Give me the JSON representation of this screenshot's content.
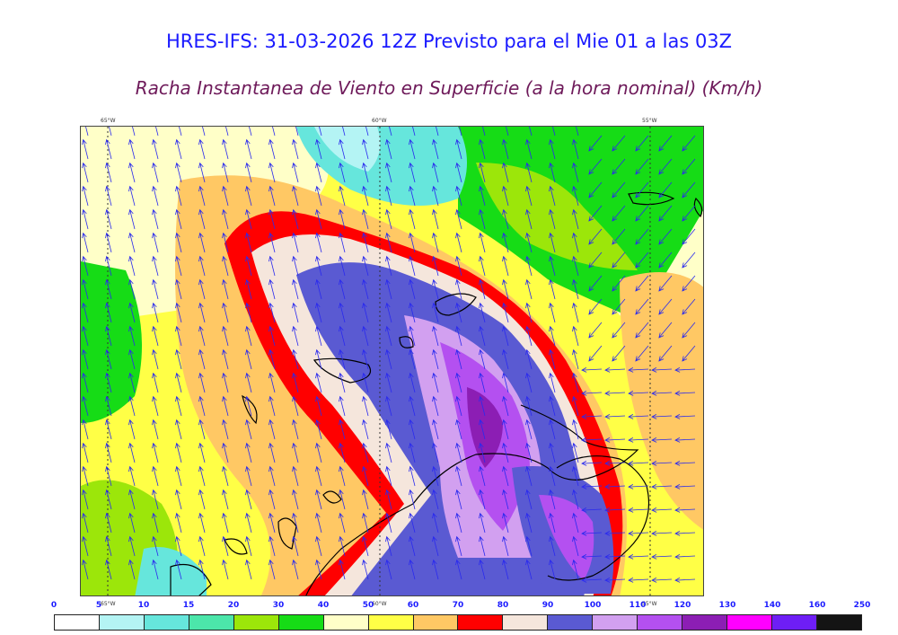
{
  "header": {
    "title": "HRES-IFS: 31-03-2026 12Z Previsto para el Mie 01 a las 03Z",
    "subtitle": "Racha Instantanea de Viento en Superficie (a la hora nominal) (Km/h)"
  },
  "map": {
    "longitude_labels_top": [
      "65°W",
      "60°W",
      "55°W"
    ],
    "longitude_labels_bottom": [
      "65°W",
      "60°W",
      "55°W"
    ]
  },
  "colorbar": {
    "ticks": [
      "0",
      "5",
      "10",
      "15",
      "20",
      "30",
      "40",
      "50",
      "60",
      "70",
      "80",
      "90",
      "100",
      "110",
      "120",
      "130",
      "140",
      "160",
      "250"
    ],
    "colors": [
      "#ffffff",
      "#b4f4f4",
      "#66e6dc",
      "#4ce6aa",
      "#9ce60a",
      "#16dc16",
      "#ffffc8",
      "#ffff46",
      "#ffc864",
      "#ff0000",
      "#f5e6dc",
      "#5a5ad2",
      "#d2a0f0",
      "#b450f0",
      "#8c1eb4",
      "#ff00ff",
      "#6e1ef5",
      "#141414"
    ]
  }
}
